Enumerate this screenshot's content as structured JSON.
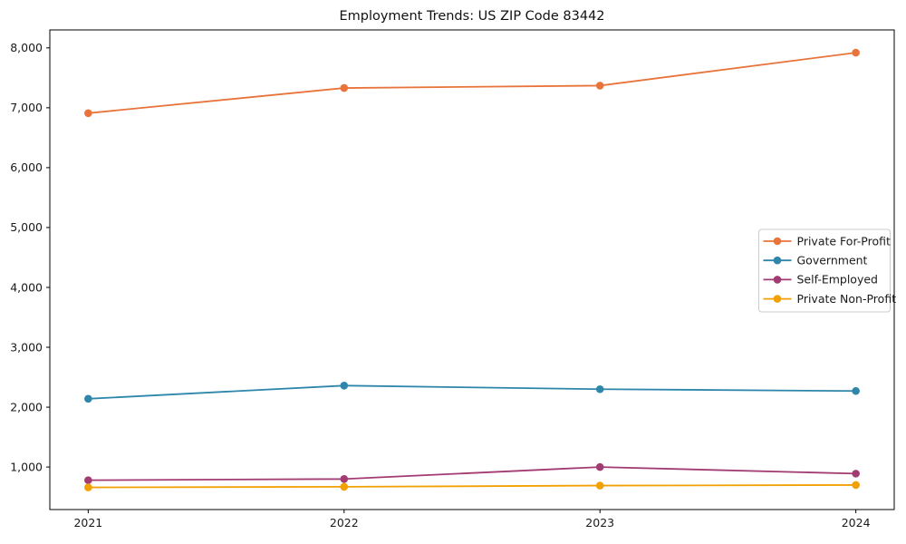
{
  "title": "Employment Trends: US ZIP Code 83442",
  "chart_data": {
    "type": "line",
    "title": "Employment Trends: US ZIP Code 83442",
    "xlabel": "",
    "ylabel": "",
    "categories": [
      "2021",
      "2022",
      "2023",
      "2024"
    ],
    "x_values": [
      2021,
      2022,
      2023,
      2024
    ],
    "series": [
      {
        "name": "Private For-Profit",
        "color": "#E8743B",
        "values": [
          6910,
          7330,
          7370,
          7920
        ]
      },
      {
        "name": "Government",
        "color": "#2E86AB",
        "values": [
          2140,
          2360,
          2300,
          2270
        ]
      },
      {
        "name": "Self-Employed",
        "color": "#A23B72",
        "values": [
          780,
          800,
          1000,
          890
        ]
      },
      {
        "name": "Private Non-Profit",
        "color": "#F2A104",
        "values": [
          660,
          670,
          690,
          700
        ]
      }
    ],
    "y_ticks": [
      1000,
      2000,
      3000,
      4000,
      5000,
      6000,
      7000,
      8000
    ],
    "y_tick_labels": [
      "1,000",
      "2,000",
      "3,000",
      "4,000",
      "5,000",
      "6,000",
      "7,000",
      "8,000"
    ],
    "xlim": [
      2020.85,
      2024.15
    ],
    "ylim": [
      290,
      8300
    ],
    "grid": false,
    "legend_position": "center right",
    "frame_color": "#000000",
    "tick_text_color": "#1a1a1a",
    "legend_border_color": "#cccccc",
    "background_color": "#ffffff"
  }
}
